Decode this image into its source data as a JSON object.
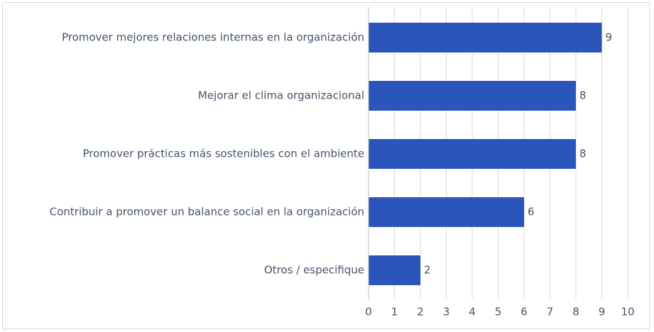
{
  "chart_data": {
    "type": "bar",
    "orientation": "horizontal",
    "categories": [
      "Promover mejores relaciones internas en la organización",
      "Mejorar el clima organizacional",
      "Promover prácticas más sostenibles con el ambiente",
      "Contribuir a promover un balance social en la organización",
      "Otros / especifique"
    ],
    "values": [
      9,
      8,
      8,
      6,
      2
    ],
    "color": "#2a56bb",
    "xlim": [
      0,
      10
    ],
    "xticks": [
      0,
      1,
      2,
      3,
      4,
      5,
      6,
      7,
      8,
      9,
      10
    ],
    "grid": true
  }
}
